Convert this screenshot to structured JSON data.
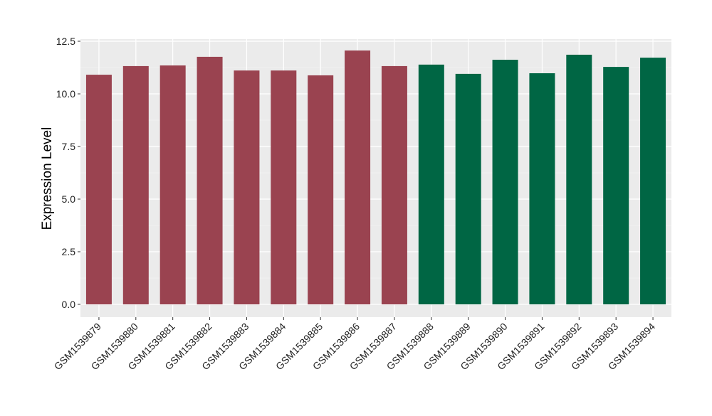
{
  "chart_data": {
    "type": "bar",
    "title": "",
    "xlabel": "",
    "ylabel": "Expression Level",
    "ylim": [
      -0.5,
      12.75
    ],
    "yticks": [
      0.0,
      2.5,
      5.0,
      7.5,
      10.0,
      12.5
    ],
    "ytick_labels": [
      "0.0",
      "2.5",
      "5.0",
      "7.5",
      "10.0",
      "12.5"
    ],
    "grid": true,
    "categories": [
      "GSM1539879",
      "GSM1539880",
      "GSM1539881",
      "GSM1539882",
      "GSM1539883",
      "GSM1539884",
      "GSM1539885",
      "GSM1539886",
      "GSM1539887",
      "GSM1539888",
      "GSM1539889",
      "GSM1539890",
      "GSM1539891",
      "GSM1539892",
      "GSM1539893",
      "GSM1539894"
    ],
    "values": [
      10.91,
      11.32,
      11.35,
      11.76,
      11.11,
      11.11,
      10.88,
      12.06,
      11.32,
      11.39,
      10.95,
      11.62,
      10.98,
      11.86,
      11.28,
      11.72
    ],
    "groups": [
      0,
      0,
      0,
      0,
      0,
      0,
      0,
      0,
      0,
      1,
      1,
      1,
      1,
      1,
      1,
      1
    ],
    "group_colors": [
      "#9a4350",
      "#006644"
    ]
  }
}
